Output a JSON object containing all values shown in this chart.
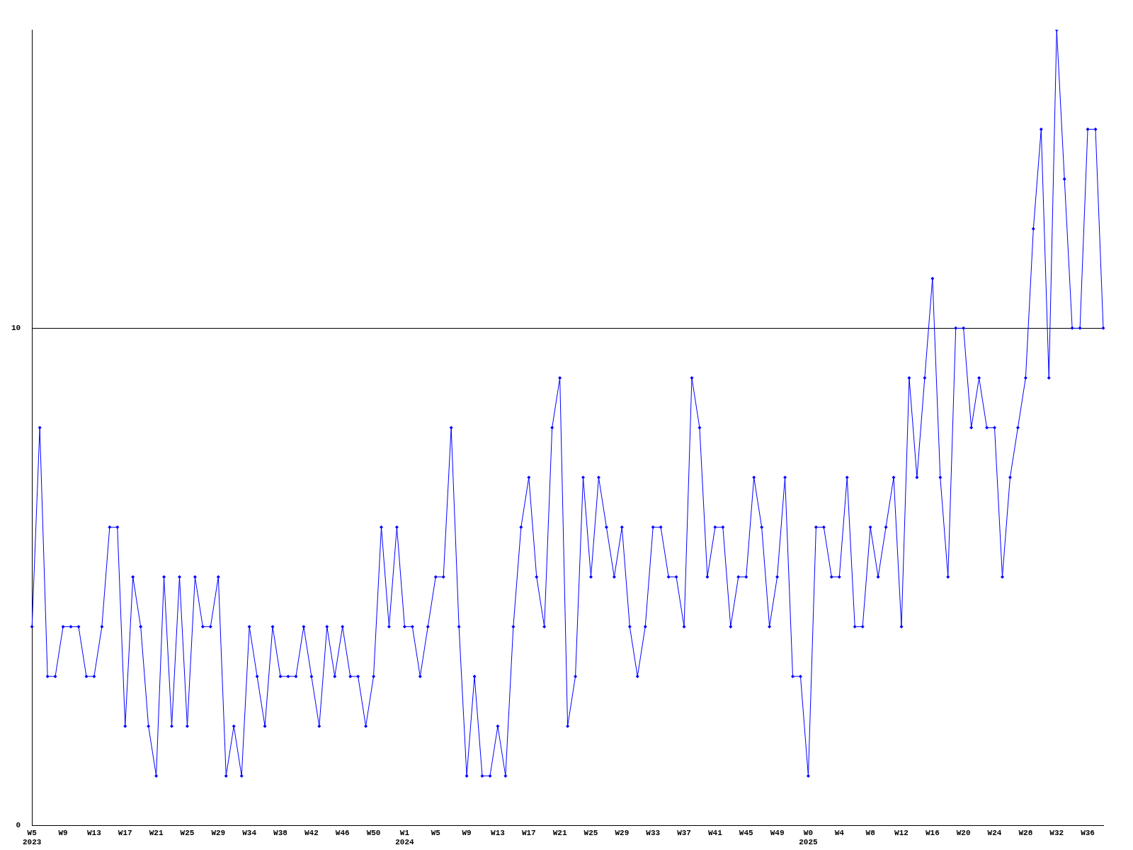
{
  "chart_data": {
    "type": "line",
    "categories": [
      "W5\n2023",
      null,
      null,
      null,
      "W9",
      null,
      null,
      null,
      "W13",
      null,
      null,
      null,
      "W17",
      null,
      null,
      null,
      "W21",
      null,
      null,
      null,
      "W25",
      null,
      null,
      null,
      "W29",
      null,
      null,
      null,
      "W34",
      null,
      null,
      null,
      "W38",
      null,
      null,
      null,
      "W42",
      null,
      null,
      null,
      "W46",
      null,
      null,
      null,
      "W50",
      null,
      null,
      null,
      "W1\n2024",
      null,
      null,
      null,
      "W5",
      null,
      null,
      null,
      "W9",
      null,
      null,
      null,
      "W13",
      null,
      null,
      null,
      "W17",
      null,
      null,
      null,
      "W21",
      null,
      null,
      null,
      "W25",
      null,
      null,
      null,
      "W29",
      null,
      null,
      null,
      "W33",
      null,
      null,
      null,
      "W37",
      null,
      null,
      null,
      "W41",
      null,
      null,
      null,
      "W45",
      null,
      null,
      null,
      "W49",
      null,
      null,
      null,
      "W0\n2025",
      null,
      null,
      null,
      "W4",
      null,
      null,
      null,
      "W8",
      null,
      null,
      null,
      "W12",
      null,
      null,
      null,
      "W16",
      null,
      null,
      null,
      "W20",
      null,
      null,
      null,
      "W24",
      null,
      null,
      null,
      "W28",
      null,
      null,
      null,
      "W32",
      null,
      null,
      null,
      "W36",
      null,
      null
    ],
    "series": [
      {
        "color": "#0000ff",
        "values": [
          4,
          8,
          3,
          3,
          4,
          4,
          4,
          3,
          3,
          4,
          6,
          6,
          2,
          5,
          4,
          2,
          1,
          5,
          2,
          5,
          2,
          5,
          4,
          4,
          5,
          1,
          2,
          1,
          4,
          3,
          2,
          4,
          3,
          3,
          3,
          4,
          3,
          2,
          4,
          3,
          4,
          3,
          3,
          2,
          3,
          6,
          4,
          6,
          4,
          4,
          3,
          4,
          5,
          5,
          8,
          4,
          1,
          3,
          1,
          1,
          2,
          1,
          4,
          6,
          7,
          5,
          4,
          8,
          9,
          2,
          3,
          7,
          5,
          7,
          6,
          5,
          6,
          4,
          3,
          4,
          6,
          6,
          5,
          5,
          4,
          9,
          8,
          5,
          6,
          6,
          4,
          5,
          5,
          7,
          6,
          4,
          5,
          7,
          3,
          3,
          1,
          6,
          6,
          5,
          5,
          7,
          4,
          4,
          6,
          5,
          6,
          7,
          4,
          9,
          7,
          9,
          11,
          7,
          5,
          10,
          10,
          8,
          9,
          8,
          8,
          5,
          7,
          8,
          9,
          12,
          14,
          9,
          16,
          13,
          10,
          10,
          14,
          14,
          10
        ]
      }
    ],
    "ylim": [
      0,
      16
    ],
    "yticks": [
      0,
      10
    ],
    "grid": "y",
    "marker": "diamond",
    "line_style": "solid",
    "legend": false
  }
}
